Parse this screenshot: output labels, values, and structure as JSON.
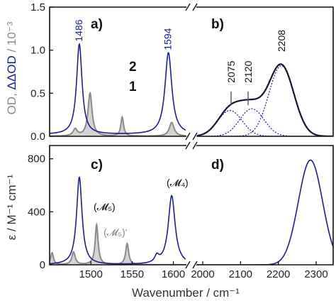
{
  "colors": {
    "sample2": "#1a1f8c",
    "sample1": "#8a8a8a",
    "fill1": "#d4d4d4",
    "axis": "#111111"
  },
  "axis_break": "//",
  "chart_data": [
    {
      "panel": "a)",
      "type": "line",
      "xlim": [
        1450,
        1615
      ],
      "ylim": [
        0,
        1.5
      ],
      "yticks": [
        "0.0",
        "0.5",
        "1.0",
        "1.5"
      ],
      "ylabel": {
        "part1": "OD, ",
        "part2": "ΔΔOD",
        "part3": " / 10⁻³"
      },
      "legend": {
        "s2": "2",
        "s1": "1"
      },
      "peak_labels": [
        "1486",
        "1594"
      ],
      "series": [
        {
          "name": "2",
          "peaks": [
            [
              1486,
              1.05,
              4
            ],
            [
              1594,
              0.95,
              5
            ]
          ],
          "baseline": 0.02
        },
        {
          "name": "1",
          "peaks": [
            [
              1499,
              0.5,
              3
            ],
            [
              1538,
              0.22,
              2
            ],
            [
              1598,
              0.16,
              3.5
            ],
            [
              1481,
              0.08,
              3
            ]
          ],
          "filled": true
        }
      ]
    },
    {
      "panel": "b)",
      "type": "line",
      "xlim": [
        1985,
        2345
      ],
      "ylim": [
        0,
        1.5
      ],
      "peak_labels": [
        "2075",
        "2120",
        "2208"
      ],
      "series": [
        {
          "name": "data",
          "peaks": [
            [
              2072,
              0.3,
              32
            ],
            [
              2130,
              0.32,
              32
            ],
            [
              2208,
              0.82,
              33
            ]
          ]
        },
        {
          "name": "fit",
          "style": "dotted",
          "peaks": [
            [
              2072,
              0.3,
              32
            ],
            [
              2130,
              0.32,
              32
            ],
            [
              2208,
              0.82,
              33
            ]
          ]
        },
        {
          "name": "components",
          "style": "dotted",
          "components": [
            [
              2072,
              0.3,
              32
            ],
            [
              2130,
              0.32,
              32
            ],
            [
              2208,
              0.82,
              33
            ]
          ]
        }
      ]
    },
    {
      "panel": "c)",
      "type": "line",
      "xlim": [
        1450,
        1615
      ],
      "ylim": [
        0,
        900
      ],
      "yticks": [
        "0",
        "400",
        "800"
      ],
      "xticks": [
        "1500",
        "1550",
        "1600"
      ],
      "ylabel": "ε / M⁻¹ cm⁻¹",
      "annotations": [
        "(𝓜₅)",
        "(𝓜₅)‘",
        "(𝓜₄)"
      ],
      "series": [
        {
          "name": "2",
          "peaks": [
            [
              1486,
              660,
              4
            ],
            [
              1598,
              520,
              5
            ],
            [
              1580,
              50,
              3
            ]
          ]
        },
        {
          "name": "1",
          "peaks": [
            [
              1453,
              90,
              2
            ],
            [
              1479,
              95,
              2.5
            ],
            [
              1507,
              300,
              2.2
            ],
            [
              1544,
              160,
              2.2
            ]
          ],
          "filled": true
        }
      ]
    },
    {
      "panel": "d)",
      "type": "line",
      "xlim": [
        1985,
        2345
      ],
      "ylim": [
        0,
        900
      ],
      "xticks": [
        "2000",
        "2100",
        "2200",
        "2300"
      ],
      "xlabel": "Wavenumber / cm⁻¹",
      "series": [
        {
          "name": "2",
          "peaks": [
            [
              2285,
              790,
              32
            ]
          ]
        }
      ]
    }
  ]
}
